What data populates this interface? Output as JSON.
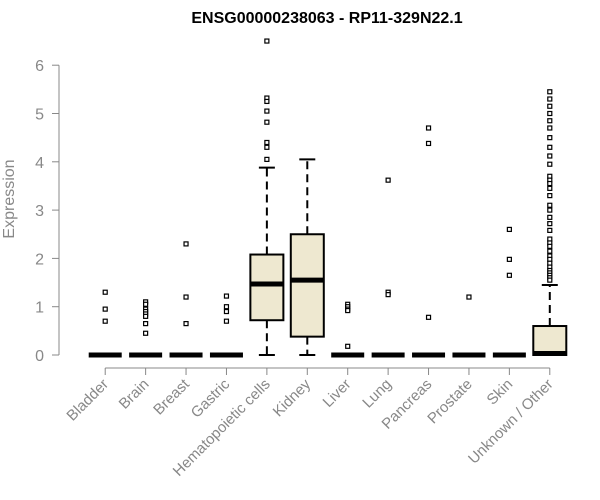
{
  "chart_data": {
    "type": "box",
    "title": "ENSG00000238063 - RP11-329N22.1",
    "xlabel": "",
    "ylabel": "Expression",
    "ylim": [
      0,
      6.5
    ],
    "yticks": [
      0,
      1,
      2,
      3,
      4,
      5,
      6
    ],
    "grid": false,
    "fill_color": "#EEE8D0",
    "categories": [
      "Bladder",
      "Brain",
      "Breast",
      "Gastric",
      "Hematopoietic cells",
      "Kidney",
      "Liver",
      "Lung",
      "Pancreas",
      "Prostate",
      "Skin",
      "Unknown / Other"
    ],
    "boxes": [
      {
        "category": "Bladder",
        "q1": 0,
        "median": 0,
        "q3": 0,
        "whisker_low": 0,
        "whisker_high": 0,
        "outliers": [
          1.3,
          0.95,
          0.7
        ]
      },
      {
        "category": "Brain",
        "q1": 0,
        "median": 0,
        "q3": 0,
        "whisker_low": 0,
        "whisker_high": 0,
        "outliers": [
          1.1,
          1.05,
          0.95,
          0.9,
          0.85,
          0.8,
          0.65,
          0.45
        ]
      },
      {
        "category": "Breast",
        "q1": 0,
        "median": 0,
        "q3": 0,
        "whisker_low": 0,
        "whisker_high": 0,
        "outliers": [
          2.3,
          1.2,
          0.65
        ]
      },
      {
        "category": "Gastric",
        "q1": 0,
        "median": 0,
        "q3": 0,
        "whisker_low": 0,
        "whisker_high": 0,
        "outliers": [
          1.22,
          1.0,
          0.9,
          0.7
        ]
      },
      {
        "category": "Hematopoietic cells",
        "q1": 0.72,
        "median": 1.47,
        "q3": 2.08,
        "whisker_low": 0,
        "whisker_high": 3.88,
        "outliers": [
          6.5,
          5.32,
          5.25,
          5.05,
          4.82,
          4.4,
          4.3,
          4.05
        ]
      },
      {
        "category": "Kidney",
        "q1": 0.38,
        "median": 1.55,
        "q3": 2.5,
        "whisker_low": 0,
        "whisker_high": 4.05,
        "outliers": []
      },
      {
        "category": "Liver",
        "q1": 0,
        "median": 0,
        "q3": 0,
        "whisker_low": 0,
        "whisker_high": 0,
        "outliers": [
          1.05,
          1.0,
          0.95,
          0.92,
          0.18
        ]
      },
      {
        "category": "Lung",
        "q1": 0,
        "median": 0,
        "q3": 0,
        "whisker_low": 0,
        "whisker_high": 0,
        "outliers": [
          3.62,
          1.3,
          1.25
        ]
      },
      {
        "category": "Pancreas",
        "q1": 0,
        "median": 0,
        "q3": 0,
        "whisker_low": 0,
        "whisker_high": 0,
        "outliers": [
          4.7,
          4.38,
          0.78
        ]
      },
      {
        "category": "Prostate",
        "q1": 0,
        "median": 0,
        "q3": 0,
        "whisker_low": 0,
        "whisker_high": 0,
        "outliers": [
          1.2
        ]
      },
      {
        "category": "Skin",
        "q1": 0,
        "median": 0,
        "q3": 0,
        "whisker_low": 0,
        "whisker_high": 0,
        "outliers": [
          2.6,
          1.98,
          1.65
        ]
      },
      {
        "category": "Unknown / Other",
        "q1": 0,
        "median": 0.03,
        "q3": 0.6,
        "whisker_low": 0,
        "whisker_high": 1.45,
        "outliers": [
          5.45,
          5.3,
          5.15,
          5.0,
          4.85,
          4.7,
          4.5,
          4.3,
          4.12,
          3.95,
          3.7,
          3.62,
          3.55,
          3.45,
          3.3,
          3.1,
          3.0,
          2.85,
          2.72,
          2.58,
          2.4,
          2.32,
          2.25,
          2.15,
          2.05,
          1.98,
          1.9,
          1.82,
          1.75,
          1.7,
          1.65,
          1.6,
          1.55
        ]
      }
    ]
  }
}
